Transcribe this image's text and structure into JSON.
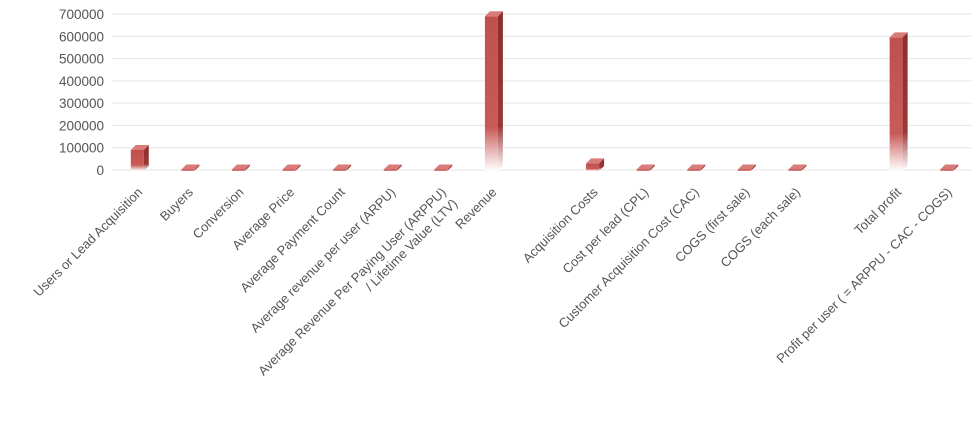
{
  "chart_data": {
    "type": "bar",
    "style": "3d-column",
    "bar_color": "#c0504d",
    "grid": true,
    "legend": "none",
    "title": "",
    "xlabel": "",
    "ylabel": "",
    "ylim": [
      0,
      700000
    ],
    "yticks": [
      "0",
      "100000",
      "200000",
      "300000",
      "400000",
      "500000",
      "600000",
      "700000"
    ],
    "categories": [
      "Users or Lead Acquisition",
      "Buyers",
      "Conversion",
      "Average Price",
      "Average Payment Count",
      "Average revenue per user (ARPU)",
      "Average Revenue Per Paying User (ARPPU)",
      "Revenue",
      "",
      "Acquisition Costs",
      "Cost per lead (CPL)",
      "Customer Acquisition Cost (CAC)",
      "COGS (first sale)",
      "COGS (each sale)",
      "",
      "Total profit",
      "Profit per user ( = ARPPU - CAC - COGS)"
    ],
    "category_label_lines": [
      [
        "Users or Lead Acquisition"
      ],
      [
        "Buyers"
      ],
      [
        "Conversion"
      ],
      [
        "Average Price"
      ],
      [
        "Average Payment Count"
      ],
      [
        "Average revenue per user (ARPU)"
      ],
      [
        "Average Revenue Per Paying User  (ARPPU)",
        "/ Lifetime Value (LTV)"
      ],
      [
        "Revenue"
      ],
      [
        ""
      ],
      [
        "Acquisition Costs"
      ],
      [
        "Cost per lead (CPL)"
      ],
      [
        "Customer Acquisition Cost  (CAC)"
      ],
      [
        "COGS (first sale)"
      ],
      [
        "COGS (each sale)"
      ],
      [
        ""
      ],
      [
        "Total profit"
      ],
      [
        "Profit per user ( = ARPPU - CAC - COGS)"
      ]
    ],
    "values": [
      90000,
      0,
      0,
      0,
      0,
      0,
      0,
      690000,
      null,
      30000,
      0,
      0,
      0,
      0,
      null,
      595000,
      0
    ]
  }
}
